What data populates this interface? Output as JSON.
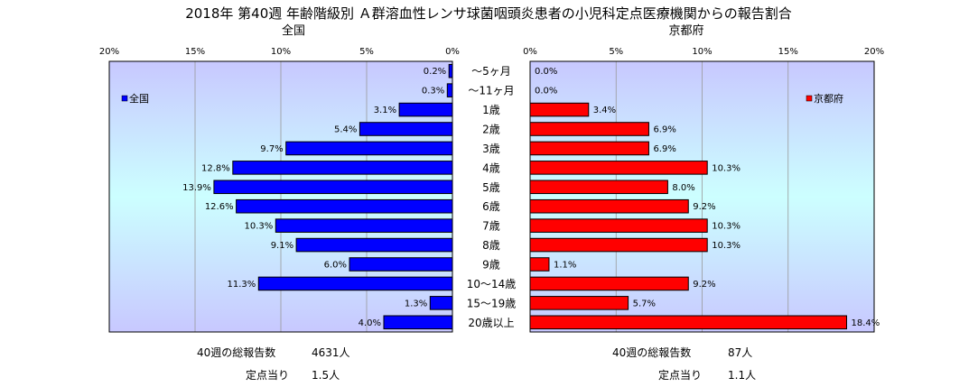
{
  "chart_data": {
    "type": "bar",
    "orientation": "horizontal",
    "layout": "butterfly",
    "title": "2018年 第40週 年齢階級別 Ａ群溶血性レンサ球菌咽頭炎患者の小児科定点医療機関からの報告割合",
    "categories": [
      "～5ヶ月",
      "～11ヶ月",
      "1歳",
      "2歳",
      "3歳",
      "4歳",
      "5歳",
      "6歳",
      "7歳",
      "8歳",
      "9歳",
      "10～14歳",
      "15～19歳",
      "20歳以上"
    ],
    "xlim": [
      0,
      20
    ],
    "x_ticks": [
      "0%",
      "5%",
      "10%",
      "15%",
      "20%"
    ],
    "grid": true,
    "panels": [
      {
        "heading": "全国",
        "legend": "全国",
        "legend_position": "left",
        "color": "#0000ff",
        "values": [
          0.2,
          0.3,
          3.1,
          5.4,
          9.7,
          12.8,
          13.9,
          12.6,
          10.3,
          9.1,
          6.0,
          11.3,
          1.3,
          4.0
        ],
        "value_labels": [
          "0.2%",
          "0.3%",
          "3.1%",
          "5.4%",
          "9.7%",
          "12.8%",
          "13.9%",
          "12.6%",
          "10.3%",
          "9.1%",
          "6.0%",
          "11.3%",
          "1.3%",
          "4.0%"
        ]
      },
      {
        "heading": "京都府",
        "legend": "京都府",
        "legend_position": "right",
        "color": "#ff0000",
        "values": [
          0.0,
          0.0,
          3.4,
          6.9,
          6.9,
          10.3,
          8.0,
          9.2,
          10.3,
          10.3,
          1.1,
          9.2,
          5.7,
          18.4
        ],
        "value_labels": [
          "0.0%",
          "0.0%",
          "3.4%",
          "6.9%",
          "6.9%",
          "10.3%",
          "8.0%",
          "9.2%",
          "10.3%",
          "10.3%",
          "1.1%",
          "9.2%",
          "5.7%",
          "18.4%"
        ]
      }
    ]
  },
  "footer": {
    "left": {
      "total_label": "40週の総報告数",
      "total_value": "4631人",
      "per_site_label": "定点当り",
      "per_site_value": "1.5人"
    },
    "right": {
      "total_label": "40週の総報告数",
      "total_value": "87人",
      "per_site_label": "定点当り",
      "per_site_value": "1.1人"
    }
  }
}
